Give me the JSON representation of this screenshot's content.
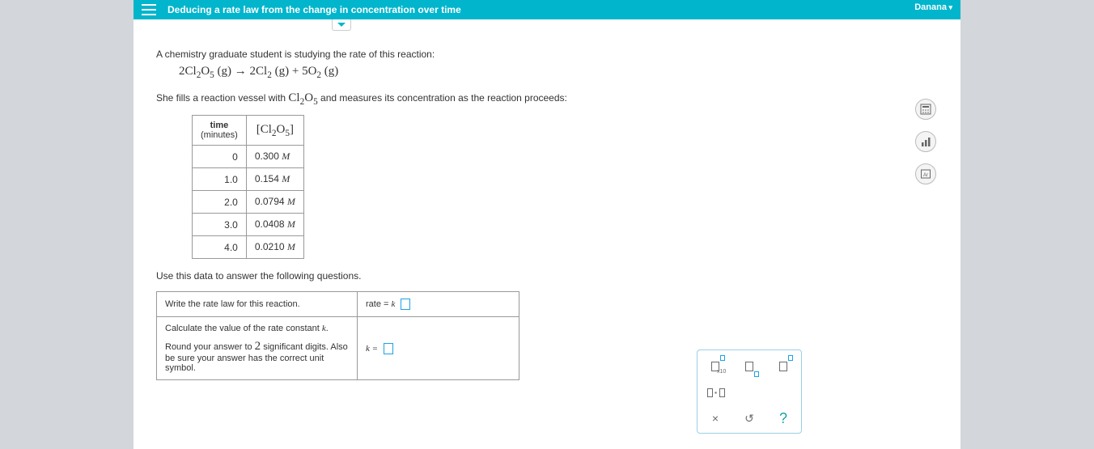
{
  "header": {
    "title": "Deducing a rate law from the change in concentration over time",
    "user": "Danana"
  },
  "intro": {
    "line1": "A chemistry graduate student is studying the rate of this reaction:",
    "line2_prefix": "She fills a reaction vessel with ",
    "line2_suffix": " and measures its concentration as the reaction proceeds:"
  },
  "reaction": {
    "lhs_coeff": "2",
    "species": "Cl",
    "sub1": "2",
    "o": "O",
    "sub2": "5",
    "phase": "(g)",
    "arrow": "→",
    "rhs1_coeff": "2",
    "rhs1": "Cl",
    "rhs1_sub": "2",
    "plus": "+",
    "rhs2_coeff": "5",
    "rhs2": "O",
    "rhs2_sub": "2"
  },
  "table": {
    "col1": "time",
    "col1_sub": "(minutes)",
    "rows": [
      {
        "t": "0",
        "c": "0.300 "
      },
      {
        "t": "1.0",
        "c": "0.154 "
      },
      {
        "t": "2.0",
        "c": "0.0794 "
      },
      {
        "t": "3.0",
        "c": "0.0408 "
      },
      {
        "t": "4.0",
        "c": "0.0210 "
      }
    ],
    "unit": "M"
  },
  "prompt_below": "Use this data to answer the following questions.",
  "answers": {
    "row1_left": "Write the rate law for this reaction.",
    "row1_right_prefix": "rate  = ",
    "row1_right_k": "k",
    "row2_left_line1": "Calculate the value of the rate constant ",
    "row2_left_k": "k",
    "row2_left_line1_end": ".",
    "row2_left_line2_a": "Round your answer to ",
    "row2_left_two": "2",
    "row2_left_line2_b": " significant digits. Also be sure your answer has the correct unit symbol.",
    "row2_right": "k ="
  },
  "palette": {
    "times": "×",
    "reset": "↺",
    "help": "?",
    "dot": "·"
  }
}
